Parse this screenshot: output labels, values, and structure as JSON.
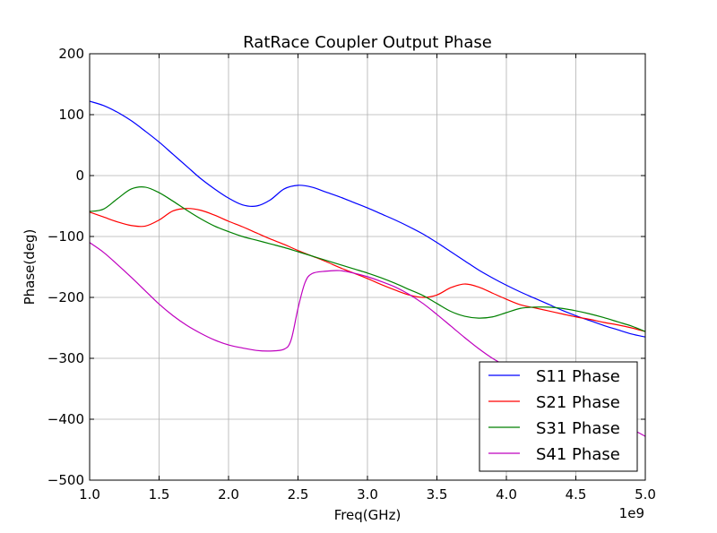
{
  "chart_data": {
    "type": "line",
    "title": "RatRace Coupler Output Phase",
    "xlabel": "Freq(GHz)",
    "ylabel": "Phase(deg)",
    "x_offset_label": "1e9",
    "xlim": [
      1.0,
      5.0
    ],
    "ylim": [
      -500,
      200
    ],
    "xticks": [
      "1.0",
      "1.5",
      "2.0",
      "2.5",
      "3.0",
      "3.5",
      "4.0",
      "4.5",
      "5.0"
    ],
    "yticks": [
      "200",
      "100",
      "0",
      "−100",
      "−200",
      "−300",
      "−400",
      "−500"
    ],
    "grid": true,
    "legend_position": "lower-right",
    "series": [
      {
        "name": "S11 Phase",
        "color": "#0000ff",
        "x": [
          1.0,
          1.1,
          1.2,
          1.3,
          1.4,
          1.5,
          1.6,
          1.7,
          1.8,
          1.9,
          2.0,
          2.1,
          2.2,
          2.3,
          2.4,
          2.5,
          2.6,
          2.7,
          2.8,
          2.9,
          3.0,
          3.1,
          3.2,
          3.3,
          3.4,
          3.5,
          3.6,
          3.7,
          3.8,
          3.9,
          4.0,
          4.1,
          4.2,
          4.3,
          4.4,
          4.5,
          4.6,
          4.7,
          4.8,
          4.9,
          5.0
        ],
        "y": [
          122,
          115,
          104,
          90,
          73,
          55,
          35,
          15,
          -5,
          -22,
          -37,
          -48,
          -50,
          -40,
          -22,
          -16,
          -19,
          -27,
          -35,
          -44,
          -53,
          -63,
          -73,
          -84,
          -96,
          -110,
          -125,
          -140,
          -155,
          -168,
          -180,
          -191,
          -201,
          -211,
          -221,
          -230,
          -238,
          -246,
          -253,
          -260,
          -265
        ]
      },
      {
        "name": "S21 Phase",
        "color": "#ff0000",
        "x": [
          1.0,
          1.1,
          1.2,
          1.3,
          1.4,
          1.5,
          1.6,
          1.7,
          1.8,
          1.9,
          2.0,
          2.1,
          2.2,
          2.3,
          2.4,
          2.5,
          2.6,
          2.7,
          2.8,
          2.9,
          3.0,
          3.1,
          3.2,
          3.3,
          3.4,
          3.5,
          3.6,
          3.7,
          3.8,
          3.9,
          4.0,
          4.1,
          4.2,
          4.3,
          4.4,
          4.5,
          4.6,
          4.7,
          4.8,
          4.9,
          5.0
        ],
        "y": [
          -60,
          -68,
          -76,
          -82,
          -83,
          -73,
          -58,
          -54,
          -57,
          -65,
          -75,
          -84,
          -94,
          -104,
          -113,
          -123,
          -132,
          -141,
          -151,
          -160,
          -169,
          -179,
          -188,
          -196,
          -200,
          -196,
          -184,
          -178,
          -183,
          -193,
          -203,
          -212,
          -217,
          -222,
          -227,
          -232,
          -236,
          -241,
          -245,
          -250,
          -256
        ]
      },
      {
        "name": "S31 Phase",
        "color": "#008000",
        "x": [
          1.0,
          1.1,
          1.2,
          1.3,
          1.4,
          1.5,
          1.6,
          1.7,
          1.8,
          1.9,
          2.0,
          2.1,
          2.2,
          2.3,
          2.4,
          2.5,
          2.6,
          2.7,
          2.8,
          2.9,
          3.0,
          3.1,
          3.2,
          3.3,
          3.4,
          3.5,
          3.6,
          3.7,
          3.8,
          3.9,
          4.0,
          4.1,
          4.2,
          4.3,
          4.4,
          4.5,
          4.6,
          4.7,
          4.8,
          4.9,
          5.0
        ],
        "y": [
          -59,
          -55,
          -38,
          -22,
          -19,
          -28,
          -42,
          -57,
          -71,
          -83,
          -92,
          -100,
          -106,
          -112,
          -118,
          -125,
          -132,
          -139,
          -146,
          -153,
          -160,
          -168,
          -177,
          -187,
          -197,
          -210,
          -223,
          -231,
          -234,
          -232,
          -225,
          -218,
          -216,
          -216,
          -218,
          -222,
          -227,
          -233,
          -240,
          -247,
          -256
        ]
      },
      {
        "name": "S41 Phase",
        "color": "#bf00bf",
        "x": [
          1.0,
          1.1,
          1.2,
          1.3,
          1.4,
          1.5,
          1.6,
          1.7,
          1.8,
          1.9,
          2.0,
          2.1,
          2.2,
          2.3,
          2.4,
          2.45,
          2.5,
          2.55,
          2.6,
          2.7,
          2.8,
          2.9,
          3.0,
          3.1,
          3.2,
          3.3,
          3.4,
          3.5,
          3.6,
          3.7,
          3.8,
          3.9,
          4.0,
          4.1,
          4.2,
          4.3,
          4.4,
          4.5,
          4.6,
          4.7,
          4.8,
          4.9,
          5.0
        ],
        "y": [
          -110,
          -126,
          -146,
          -167,
          -189,
          -211,
          -230,
          -246,
          -259,
          -270,
          -278,
          -283,
          -287,
          -288,
          -285,
          -270,
          -218,
          -176,
          -161,
          -157,
          -156,
          -160,
          -166,
          -174,
          -183,
          -195,
          -210,
          -228,
          -247,
          -266,
          -284,
          -300,
          -313,
          -325,
          -336,
          -347,
          -358,
          -369,
          -381,
          -393,
          -406,
          -416,
          -428
        ]
      }
    ]
  }
}
